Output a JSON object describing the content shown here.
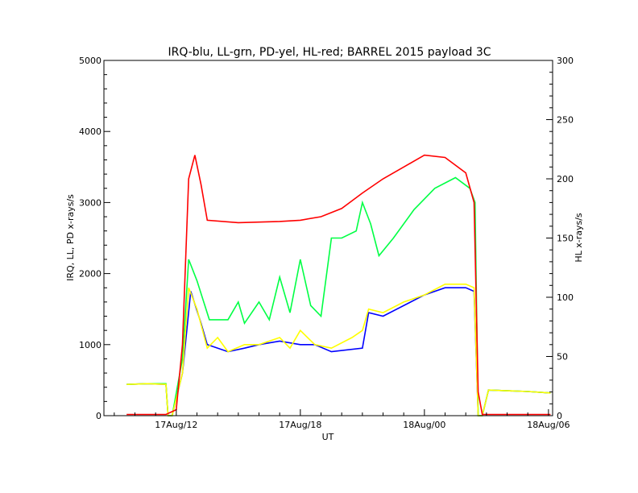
{
  "chart_data": {
    "type": "line",
    "title": "IRQ-blu, LL-grn, PD-yel, HL-red; BARREL 2015 payload 3C",
    "xlabel": "UT",
    "ylabel_left": "IRQ, LL, PD x-rays/s",
    "ylabel_right": "HL x-rays/s",
    "x_unit": "hours since 17Aug/00 UT",
    "xlim": [
      8.5,
      30.2
    ],
    "ylim_left": [
      0,
      5000
    ],
    "ylim_right": [
      0,
      300
    ],
    "x_ticks": [
      {
        "pos": 12,
        "label": "17Aug/12"
      },
      {
        "pos": 18,
        "label": "17Aug/18"
      },
      {
        "pos": 24,
        "label": "18Aug/00"
      },
      {
        "pos": 30,
        "label": "18Aug/06"
      }
    ],
    "y_ticks_left": [
      "0",
      "1000",
      "2000",
      "3000",
      "4000",
      "5000"
    ],
    "y_ticks_right": [
      "0",
      "50",
      "100",
      "150",
      "200",
      "250",
      "300"
    ],
    "grid": false,
    "series": [
      {
        "name": "IRQ",
        "axis": "left",
        "color": "#0000ff",
        "points": [
          [
            9.6,
            440
          ],
          [
            10.6,
            450
          ],
          [
            11.5,
            440
          ],
          [
            11.6,
            0
          ],
          [
            11.8,
            0
          ],
          [
            12.3,
            600
          ],
          [
            12.7,
            1750
          ],
          [
            13.2,
            1300
          ],
          [
            13.5,
            1000
          ],
          [
            14.5,
            900
          ],
          [
            15.3,
            950
          ],
          [
            16.0,
            1000
          ],
          [
            17.0,
            1050
          ],
          [
            18.0,
            1000
          ],
          [
            18.7,
            1000
          ],
          [
            19.5,
            900
          ],
          [
            21.0,
            950
          ],
          [
            21.3,
            1450
          ],
          [
            22.0,
            1400
          ],
          [
            24.0,
            1700
          ],
          [
            25.0,
            1800
          ],
          [
            26.0,
            1800
          ],
          [
            26.4,
            1750
          ],
          [
            26.6,
            0
          ],
          [
            26.8,
            0
          ],
          [
            27.1,
            360
          ],
          [
            29.0,
            340
          ],
          [
            30.1,
            320
          ]
        ]
      },
      {
        "name": "LL",
        "axis": "left",
        "color": "#00ff44",
        "points": [
          [
            9.6,
            440
          ],
          [
            10.6,
            450
          ],
          [
            11.5,
            450
          ],
          [
            11.6,
            0
          ],
          [
            11.8,
            0
          ],
          [
            12.3,
            800
          ],
          [
            12.6,
            2200
          ],
          [
            13.0,
            1900
          ],
          [
            13.6,
            1350
          ],
          [
            14.5,
            1350
          ],
          [
            15.0,
            1600
          ],
          [
            15.3,
            1300
          ],
          [
            16.0,
            1600
          ],
          [
            16.5,
            1350
          ],
          [
            17.0,
            1950
          ],
          [
            17.5,
            1450
          ],
          [
            18.0,
            2200
          ],
          [
            18.5,
            1550
          ],
          [
            19.0,
            1400
          ],
          [
            19.5,
            2500
          ],
          [
            20.0,
            2500
          ],
          [
            20.7,
            2600
          ],
          [
            21.0,
            3000
          ],
          [
            21.4,
            2700
          ],
          [
            21.8,
            2250
          ],
          [
            22.5,
            2500
          ],
          [
            23.5,
            2900
          ],
          [
            24.5,
            3200
          ],
          [
            25.5,
            3350
          ],
          [
            26.2,
            3200
          ],
          [
            26.45,
            3000
          ],
          [
            26.6,
            0
          ],
          [
            26.8,
            0
          ],
          [
            27.1,
            360
          ],
          [
            29.0,
            340
          ],
          [
            30.1,
            320
          ]
        ]
      },
      {
        "name": "PD",
        "axis": "left",
        "color": "#ffff00",
        "points": [
          [
            9.6,
            440
          ],
          [
            10.6,
            450
          ],
          [
            11.5,
            440
          ],
          [
            11.6,
            0
          ],
          [
            11.8,
            0
          ],
          [
            12.3,
            600
          ],
          [
            12.6,
            1800
          ],
          [
            13.0,
            1500
          ],
          [
            13.5,
            950
          ],
          [
            14.0,
            1100
          ],
          [
            14.5,
            900
          ],
          [
            15.3,
            1000
          ],
          [
            16.0,
            1000
          ],
          [
            17.0,
            1100
          ],
          [
            17.5,
            950
          ],
          [
            18.0,
            1200
          ],
          [
            18.7,
            1000
          ],
          [
            19.5,
            950
          ],
          [
            20.5,
            1100
          ],
          [
            21.0,
            1200
          ],
          [
            21.3,
            1500
          ],
          [
            22.0,
            1450
          ],
          [
            23.0,
            1600
          ],
          [
            24.0,
            1700
          ],
          [
            25.0,
            1850
          ],
          [
            26.0,
            1850
          ],
          [
            26.4,
            1800
          ],
          [
            26.6,
            0
          ],
          [
            26.8,
            0
          ],
          [
            27.1,
            360
          ],
          [
            29.0,
            340
          ],
          [
            30.1,
            320
          ]
        ]
      },
      {
        "name": "HL",
        "axis": "right",
        "color": "#ff0000",
        "points": [
          [
            9.6,
            1
          ],
          [
            11.5,
            1
          ],
          [
            12.0,
            5
          ],
          [
            12.3,
            60
          ],
          [
            12.6,
            200
          ],
          [
            12.9,
            220
          ],
          [
            13.2,
            195
          ],
          [
            13.5,
            165
          ],
          [
            15.0,
            163
          ],
          [
            17.0,
            164
          ],
          [
            18.0,
            165
          ],
          [
            19.0,
            168
          ],
          [
            20.0,
            175
          ],
          [
            21.0,
            188
          ],
          [
            22.0,
            200
          ],
          [
            23.0,
            210
          ],
          [
            24.0,
            220
          ],
          [
            25.0,
            218
          ],
          [
            26.0,
            205
          ],
          [
            26.4,
            180
          ],
          [
            26.6,
            20
          ],
          [
            26.8,
            1
          ],
          [
            30.1,
            1
          ]
        ]
      }
    ]
  }
}
